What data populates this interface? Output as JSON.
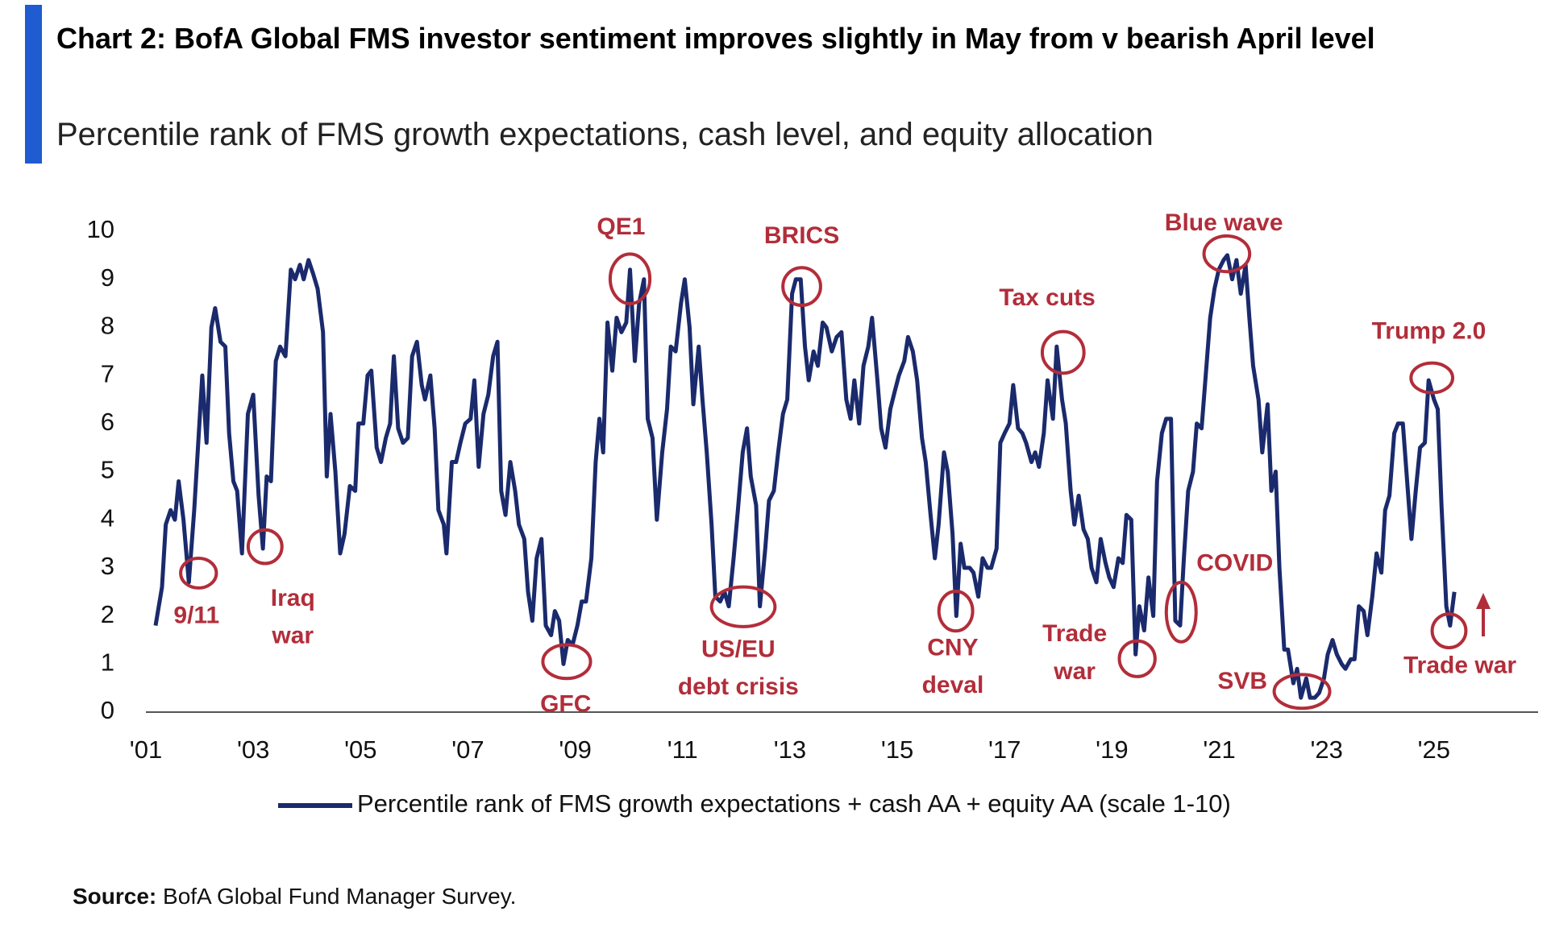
{
  "chart_data": {
    "type": "line",
    "title": "Chart 2: BofA Global FMS investor sentiment improves slightly in May from v bearish April level",
    "subtitle": "Percentile rank of FMS growth expectations, cash level, and equity allocation",
    "source_label": "Source:",
    "source": "BofA Global Fund Manager Survey.",
    "xlim": [
      2001,
      2026.94
    ],
    "ylim": [
      0,
      10
    ],
    "yticks": [
      0,
      1,
      2,
      3,
      4,
      5,
      6,
      7,
      8,
      9,
      10
    ],
    "xticks": [
      {
        "value": 2001,
        "label": "'01"
      },
      {
        "value": 2003,
        "label": "'03"
      },
      {
        "value": 2005,
        "label": "'05"
      },
      {
        "value": 2007,
        "label": "'07"
      },
      {
        "value": 2009,
        "label": "'09"
      },
      {
        "value": 2011,
        "label": "'11"
      },
      {
        "value": 2013,
        "label": "'13"
      },
      {
        "value": 2015,
        "label": "'15"
      },
      {
        "value": 2017,
        "label": "'17"
      },
      {
        "value": 2019,
        "label": "'19"
      },
      {
        "value": 2021,
        "label": "'21"
      },
      {
        "value": 2023,
        "label": "'23"
      },
      {
        "value": 2025,
        "label": "'25"
      }
    ],
    "grid": false,
    "x": [
      2001.18,
      2001.3,
      2001.37,
      2001.46,
      2001.54,
      2001.61,
      2001.7,
      2001.8,
      2001.9,
      2002.05,
      2002.13,
      2002.22,
      2002.29,
      2002.39,
      2002.48,
      2002.55,
      2002.63,
      2002.7,
      2002.79,
      2002.9,
      2003.0,
      2003.1,
      2003.18,
      2003.25,
      2003.33,
      2003.42,
      2003.5,
      2003.6,
      2003.7,
      2003.78,
      2003.87,
      2003.94,
      2004.03,
      2004.12,
      2004.2,
      2004.3,
      2004.37,
      2004.44,
      2004.53,
      2004.62,
      2004.7,
      2004.8,
      2004.9,
      2004.96,
      2005.05,
      2005.13,
      2005.2,
      2005.3,
      2005.38,
      2005.47,
      2005.55,
      2005.62,
      2005.7,
      2005.79,
      2005.88,
      2005.96,
      2006.05,
      2006.14,
      2006.2,
      2006.3,
      2006.38,
      2006.45,
      2006.55,
      2006.6,
      2006.7,
      2006.78,
      2006.86,
      2006.95,
      2007.05,
      2007.12,
      2007.2,
      2007.29,
      2007.38,
      2007.47,
      2007.55,
      2007.62,
      2007.7,
      2007.79,
      2007.88,
      2007.95,
      2008.05,
      2008.12,
      2008.2,
      2008.28,
      2008.37,
      2008.45,
      2008.55,
      2008.62,
      2008.7,
      2008.78,
      2008.86,
      2008.95,
      2009.04,
      2009.12,
      2009.2,
      2009.3,
      2009.38,
      2009.45,
      2009.52,
      2009.6,
      2009.69,
      2009.77,
      2009.86,
      2009.95,
      2010.02,
      2010.11,
      2010.19,
      2010.28,
      2010.35,
      2010.44,
      2010.52,
      2010.62,
      2010.71,
      2010.78,
      2010.87,
      2010.97,
      2011.04,
      2011.13,
      2011.2,
      2011.3,
      2011.37,
      2011.45,
      2011.54,
      2011.61,
      2011.7,
      2011.78,
      2011.86,
      2011.95,
      2012.03,
      2012.12,
      2012.2,
      2012.27,
      2012.37,
      2012.44,
      2012.54,
      2012.61,
      2012.7,
      2012.78,
      2012.87,
      2012.95,
      2013.04,
      2013.11,
      2013.2,
      2013.28,
      2013.35,
      2013.44,
      2013.52,
      2013.61,
      2013.68,
      2013.78,
      2013.87,
      2013.96,
      2014.05,
      2014.13,
      2014.2,
      2014.29,
      2014.37,
      2014.46,
      2014.53,
      2014.63,
      2014.7,
      2014.78,
      2014.87,
      2014.96,
      2015.03,
      2015.13,
      2015.2,
      2015.29,
      2015.37,
      2015.46,
      2015.53,
      2015.62,
      2015.7,
      2015.77,
      2015.87,
      2015.94,
      2016.03,
      2016.1,
      2016.18,
      2016.25,
      2016.35,
      2016.42,
      2016.51,
      2016.59,
      2016.68,
      2016.75,
      2016.85,
      2016.92,
      2017.0,
      2017.09,
      2017.16,
      2017.25,
      2017.33,
      2017.4,
      2017.5,
      2017.57,
      2017.64,
      2017.73,
      2017.8,
      2017.9,
      2017.97,
      2018.07,
      2018.14,
      2018.23,
      2018.3,
      2018.38,
      2018.47,
      2018.55,
      2018.62,
      2018.71,
      2018.79,
      2018.88,
      2018.95,
      2019.03,
      2019.12,
      2019.2,
      2019.27,
      2019.36,
      2019.44,
      2019.51,
      2019.6,
      2019.68,
      2019.77,
      2019.84,
      2019.93,
      2020.01,
      2020.1,
      2020.18,
      2020.27,
      2020.34,
      2020.42,
      2020.51,
      2020.58,
      2020.67,
      2020.74,
      2020.83,
      2020.91,
      2020.99,
      2021.08,
      2021.15,
      2021.24,
      2021.32,
      2021.4,
      2021.49,
      2021.56,
      2021.63,
      2021.73,
      2021.8,
      2021.9,
      2021.97,
      2022.05,
      2022.12,
      2022.21,
      2022.28,
      2022.38,
      2022.45,
      2022.52,
      2022.62,
      2022.69,
      2022.78,
      2022.86,
      2022.95,
      2023.02,
      2023.11,
      2023.19,
      2023.28,
      2023.35,
      2023.45,
      2023.52,
      2023.6,
      2023.69,
      2023.76,
      2023.85,
      2023.93,
      2024.02,
      2024.09,
      2024.17,
      2024.26,
      2024.33,
      2024.42,
      2024.5,
      2024.58,
      2024.66,
      2024.74,
      2024.83,
      2024.9,
      2025.0,
      2025.07,
      2025.14,
      2025.23,
      2025.3,
      2025.38
    ],
    "series": [
      {
        "name": "Percentile rank of FMS growth expectations + cash AA + equity AA (scale 1-10)",
        "color": "#1a2a6c",
        "values": [
          1.8,
          2.6,
          3.9,
          4.2,
          4.0,
          4.8,
          4.0,
          2.7,
          4.2,
          7.0,
          5.6,
          8.0,
          8.4,
          7.7,
          7.6,
          5.8,
          4.8,
          4.6,
          3.3,
          6.2,
          6.6,
          4.5,
          3.4,
          4.9,
          4.8,
          7.3,
          7.6,
          7.4,
          9.2,
          9.0,
          9.3,
          9.0,
          9.4,
          9.1,
          8.8,
          7.9,
          4.9,
          6.2,
          5.0,
          3.3,
          3.7,
          4.7,
          4.6,
          6.0,
          6.0,
          7.0,
          7.1,
          5.5,
          5.2,
          5.7,
          6.0,
          7.4,
          5.9,
          5.6,
          5.7,
          7.4,
          7.7,
          6.8,
          6.5,
          7.0,
          5.9,
          4.2,
          3.9,
          3.3,
          5.2,
          5.2,
          5.6,
          6.0,
          6.1,
          6.9,
          5.1,
          6.2,
          6.6,
          7.4,
          7.7,
          4.6,
          4.1,
          5.2,
          4.6,
          3.9,
          3.6,
          2.5,
          1.9,
          3.2,
          3.6,
          1.8,
          1.6,
          2.1,
          1.9,
          1.0,
          1.5,
          1.4,
          1.8,
          2.3,
          2.3,
          3.2,
          5.2,
          6.1,
          5.4,
          8.1,
          7.1,
          8.2,
          7.9,
          8.1,
          9.2,
          7.3,
          8.5,
          9.0,
          6.1,
          5.7,
          4.0,
          5.4,
          6.3,
          7.6,
          7.5,
          8.5,
          9.0,
          8.0,
          6.4,
          7.6,
          6.5,
          5.4,
          3.9,
          2.4,
          2.3,
          2.5,
          2.2,
          3.2,
          4.2,
          5.4,
          5.9,
          4.9,
          4.3,
          2.2,
          3.4,
          4.4,
          4.6,
          5.4,
          6.2,
          6.5,
          8.7,
          9.0,
          9.0,
          7.6,
          6.9,
          7.5,
          7.2,
          8.1,
          8.0,
          7.5,
          7.8,
          7.9,
          6.5,
          6.1,
          6.9,
          6.0,
          7.2,
          7.6,
          8.2,
          6.9,
          5.9,
          5.5,
          6.3,
          6.7,
          7.0,
          7.3,
          7.8,
          7.5,
          6.9,
          5.7,
          5.2,
          4.1,
          3.2,
          3.9,
          5.4,
          5.0,
          3.7,
          2.0,
          3.5,
          3.0,
          3.0,
          2.9,
          2.4,
          3.2,
          3.0,
          3.0,
          3.4,
          5.6,
          5.8,
          6.0,
          6.8,
          5.9,
          5.8,
          5.6,
          5.2,
          5.4,
          5.1,
          5.8,
          6.9,
          6.1,
          7.6,
          6.5,
          6.0,
          4.6,
          3.9,
          4.5,
          3.8,
          3.6,
          3.0,
          2.7,
          3.6,
          3.1,
          2.8,
          2.6,
          3.2,
          3.1,
          4.1,
          4.0,
          1.2,
          2.2,
          1.7,
          2.8,
          2.0,
          4.8,
          5.8,
          6.1,
          6.1,
          1.9,
          1.8,
          3.2,
          4.6,
          5.0,
          6.0,
          5.9,
          6.9,
          8.2,
          8.8,
          9.2,
          9.4,
          9.5,
          9.0,
          9.4,
          8.7,
          9.3,
          8.2,
          7.2,
          6.5,
          5.4,
          6.4,
          4.6,
          5.0,
          3.0,
          1.3,
          1.3,
          0.6,
          0.9,
          0.3,
          0.7,
          0.3,
          0.3,
          0.4,
          0.7,
          1.2,
          1.5,
          1.2,
          1.0,
          0.9,
          1.1,
          1.1,
          2.2,
          2.1,
          1.6,
          2.4,
          3.3,
          2.9,
          4.2,
          4.5,
          5.8,
          6.0,
          6.0,
          4.8,
          3.6,
          4.6,
          5.5,
          5.6,
          6.9,
          6.5,
          6.3,
          4.3,
          2.2,
          1.8,
          2.5
        ]
      }
    ],
    "annotation_color": "#b22d3a",
    "annotations": [
      {
        "text": [
          "9/11"
        ],
        "x": 2001.98,
        "y": 2.89
      },
      {
        "text": [
          "Iraq",
          "war"
        ],
        "x": 2003.22,
        "y": 3.44
      },
      {
        "text": [
          "GFC"
        ],
        "x": 2008.84,
        "y": 1.05
      },
      {
        "text": [
          "QE1"
        ],
        "x": 2010.02,
        "y": 9.01
      },
      {
        "text": [
          "US/EU",
          "debt crisis"
        ],
        "x": 2012.13,
        "y": 2.19
      },
      {
        "text": [
          "BRICS"
        ],
        "x": 2013.22,
        "y": 8.85
      },
      {
        "text": [
          "CNY",
          "deval"
        ],
        "x": 2016.09,
        "y": 2.1
      },
      {
        "text": [
          "Tax cuts"
        ],
        "x": 2018.09,
        "y": 7.48
      },
      {
        "text": [
          "Trade",
          "war"
        ],
        "x": 2019.47,
        "y": 1.11
      },
      {
        "text": [
          "COVID"
        ],
        "x": 2020.29,
        "y": 2.08
      },
      {
        "text": [
          "Blue wave"
        ],
        "x": 2021.14,
        "y": 9.53
      },
      {
        "text": [
          "SVB"
        ],
        "x": 2022.54,
        "y": 0.43
      },
      {
        "text": [
          "Trump 2.0"
        ],
        "x": 2024.96,
        "y": 6.95
      },
      {
        "text": [
          "Trade war"
        ],
        "x": 2025.28,
        "y": 1.69
      }
    ]
  }
}
